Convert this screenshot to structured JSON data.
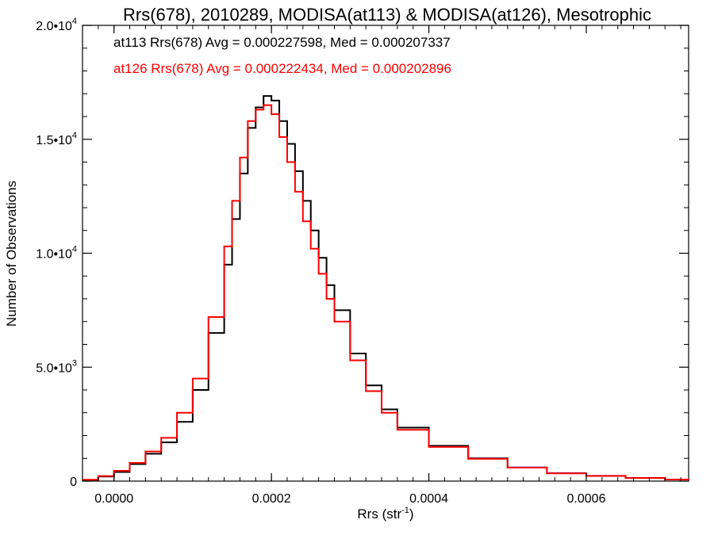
{
  "chart_data": {
    "type": "histogram",
    "title": "Rrs(678), 2010289, MODISA(at113) & MODISA(at126), Mesotrophic",
    "xlabel": {
      "base": "Rrs (str",
      "sup": "-1",
      "tail": ")"
    },
    "ylabel": "Number of Observations",
    "xlim": [
      -4e-05,
      0.00073
    ],
    "ylim": [
      0,
      20000
    ],
    "grid": false,
    "x_ticks": [
      {
        "value": 0.0,
        "label": "0.0000"
      },
      {
        "value": 0.0002,
        "label": "0.0002"
      },
      {
        "value": 0.0004,
        "label": "0.0004"
      },
      {
        "value": 0.0006,
        "label": "0.0006"
      }
    ],
    "y_ticks": [
      {
        "value": 0,
        "mant": "0",
        "exp": ""
      },
      {
        "value": 5000,
        "mant": "5.0•10",
        "exp": "3"
      },
      {
        "value": 10000,
        "mant": "1.0•10",
        "exp": "4"
      },
      {
        "value": 15000,
        "mant": "1.5•10",
        "exp": "4"
      },
      {
        "value": 20000,
        "mant": "2.0•10",
        "exp": "4"
      }
    ],
    "annotations": [
      {
        "text": "at113 Rrs(678) Avg = 0.000227598, Med = 0.000207337",
        "color": "#000000"
      },
      {
        "text": "at126 Rrs(678) Avg = 0.000222434, Med = 0.000202896",
        "color": "#ff0000"
      }
    ],
    "x": [
      -4e-05,
      -2e-05,
      0.0,
      2e-05,
      4e-05,
      6e-05,
      8e-05,
      0.0001,
      0.00012,
      0.00014,
      0.00015,
      0.00016,
      0.00017,
      0.00018,
      0.00019,
      0.0002,
      0.00021,
      0.00022,
      0.00023,
      0.00024,
      0.00025,
      0.00026,
      0.00027,
      0.00028,
      0.0003,
      0.00032,
      0.00034,
      0.00036,
      0.0004,
      0.00045,
      0.0005,
      0.00055,
      0.0006,
      0.00065,
      0.0007,
      0.00073
    ],
    "series": [
      {
        "name": "at113",
        "color": "#000000",
        "values": [
          50,
          200,
          400,
          750,
          1200,
          1700,
          2600,
          4000,
          6500,
          9500,
          11500,
          13500,
          15500,
          16400,
          16900,
          16700,
          15800,
          14800,
          13600,
          12300,
          11000,
          9800,
          8600,
          7500,
          5600,
          4200,
          3150,
          2350,
          1550,
          1000,
          600,
          350,
          230,
          140,
          70,
          30
        ]
      },
      {
        "name": "at126",
        "color": "#ff0000",
        "values": [
          60,
          220,
          450,
          800,
          1300,
          1900,
          3000,
          4500,
          7200,
          10300,
          12300,
          14200,
          15800,
          16300,
          16500,
          16100,
          15100,
          14000,
          12700,
          11400,
          10200,
          9100,
          8000,
          7000,
          5300,
          3950,
          3000,
          2250,
          1500,
          980,
          590,
          340,
          225,
          135,
          68,
          28
        ]
      }
    ]
  }
}
